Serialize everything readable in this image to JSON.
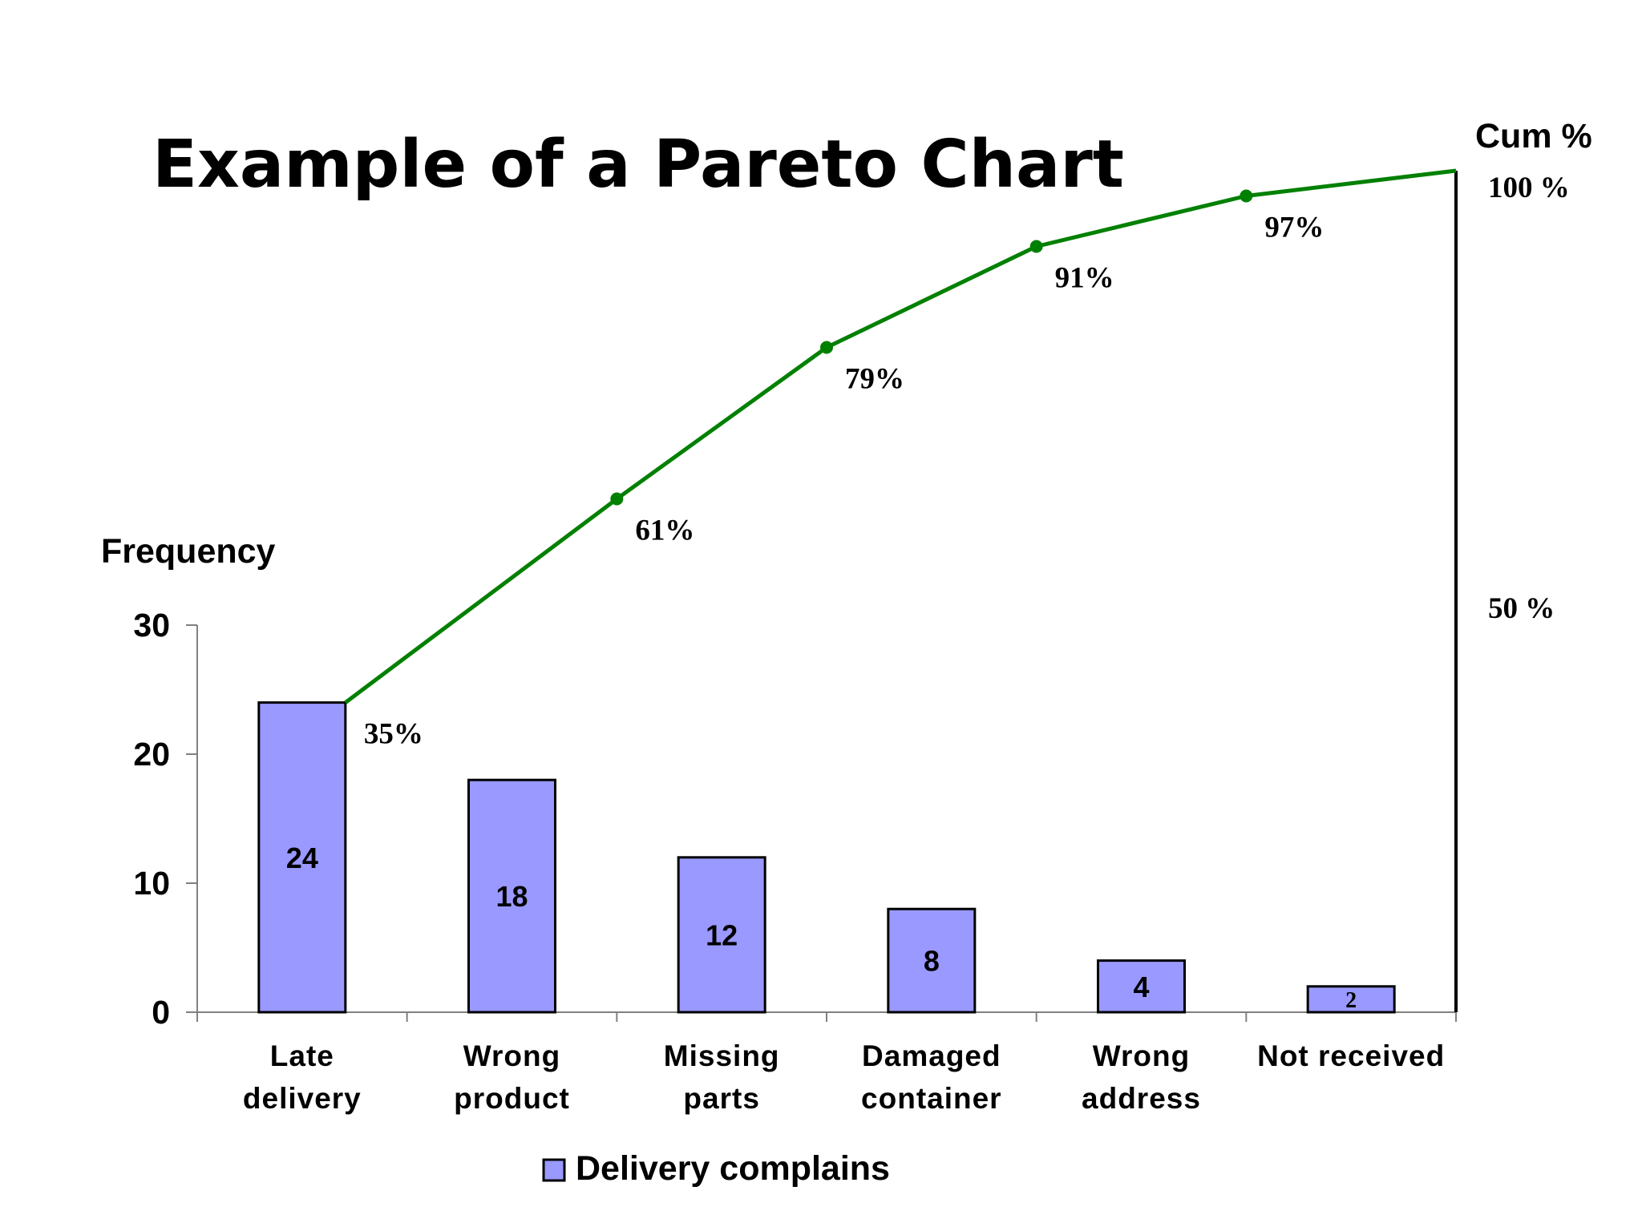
{
  "chart_data": {
    "type": "bar",
    "title": "Example of a Pareto Chart",
    "ylabel": "Frequency",
    "y2label": "Cum %",
    "categories": [
      [
        "Late",
        "delivery"
      ],
      [
        "Wrong",
        "product"
      ],
      [
        "Missing",
        "parts"
      ],
      [
        "Damaged",
        "container"
      ],
      [
        "Wrong",
        "address"
      ],
      [
        "Not received"
      ]
    ],
    "series": [
      {
        "name": "Delivery complains",
        "type": "bar",
        "values": [
          24,
          18,
          12,
          8,
          4,
          2
        ],
        "color": "#9999FF"
      },
      {
        "type": "line",
        "values": [
          35,
          61,
          79,
          91,
          97,
          100
        ],
        "labels": [
          "35%",
          "61%",
          "79%",
          "91%",
          "97%",
          ""
        ],
        "color": "#008000"
      }
    ],
    "ylim": [
      0,
      30
    ],
    "yticks": [
      0,
      10,
      20,
      30
    ],
    "y2lim": [
      0,
      100
    ],
    "y2ticks": [
      {
        "value": 50,
        "label": "50 %"
      },
      {
        "value": 100,
        "label": "100 %"
      }
    ],
    "grid": false,
    "legend": "bottom-center"
  }
}
